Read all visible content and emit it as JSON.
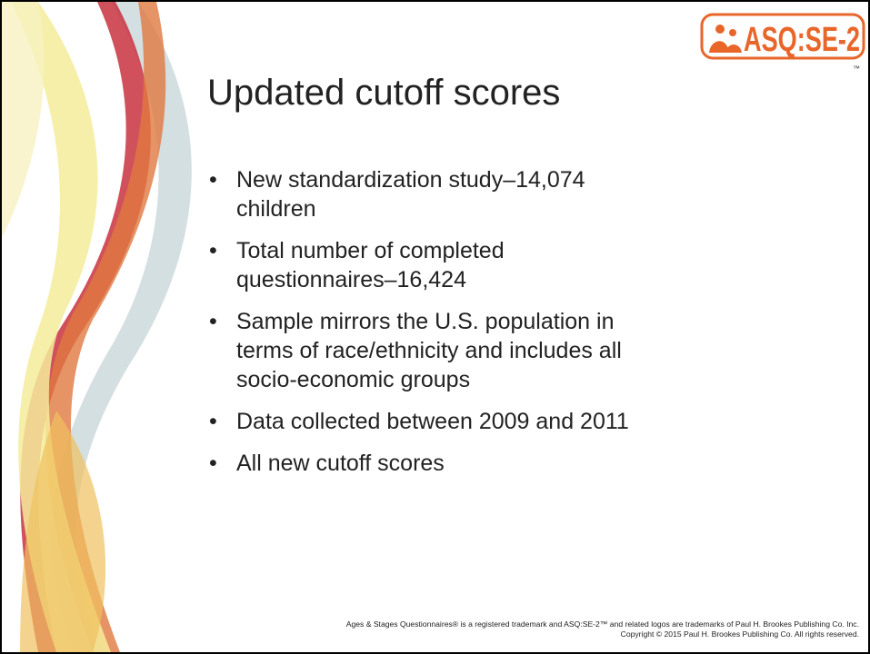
{
  "logo": {
    "text": "ASQ:SE-2",
    "trademark": "™"
  },
  "title": "Updated cutoff scores",
  "bullets": [
    [
      "New standardization study–14,074",
      "children"
    ],
    [
      "Total number of completed",
      "questionnaires–16,424"
    ],
    [
      "Sample mirrors the U.S. population in",
      "terms of race/ethnicity and includes all",
      "socio-economic groups"
    ],
    [
      "Data collected between 2009 and 2011"
    ],
    [
      "All new cutoff scores"
    ]
  ],
  "footer": [
    "Ages & Stages Questionnaires® is a registered trademark and ASQ:SE-2™ and related logos are trademarks of Paul H. Brookes Publishing Co. Inc.",
    "Copyright © 2015 Paul H. Brookes Publishing Co. All rights reserved."
  ]
}
